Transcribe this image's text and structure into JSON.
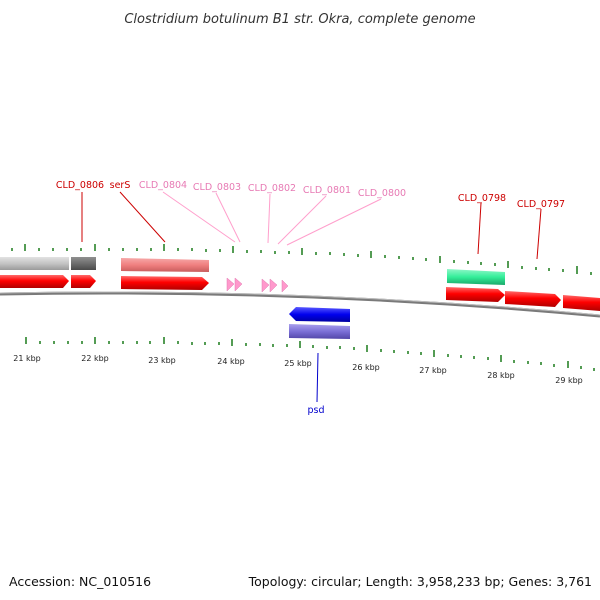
{
  "title": "Clostridium botulinum B1 str. Okra, complete genome",
  "accession": "Accession: NC_010516",
  "summary": "Topology: circular; Length: 3,958,233 bp; Genes: 3,761",
  "colors": {
    "backbone": "#7a7a7a",
    "tick": "#1a7a1a",
    "cds_forward": "#ff0000",
    "gene_gray": "#c4c4c4",
    "gene_darkgray": "#6e6e6e",
    "gene_salmon": "#f08080",
    "gene_pink": "#ff99cc",
    "gene_teal": "#33ee99",
    "gene_blue": "#0000ee",
    "gene_purple": "#7b6fd6",
    "label_red": "#cc0000",
    "label_pink": "#e77ab4",
    "label_blue": "#0000cc"
  },
  "scale_labels": [
    "21 kbp",
    "22 kbp",
    "23 kbp",
    "24 kbp",
    "25 kbp",
    "26 kbp",
    "27 kbp",
    "28 kbp",
    "29 kbp"
  ],
  "gene_labels": [
    {
      "id": "CLD_0806",
      "text": "CLD_0806",
      "color": "label_red"
    },
    {
      "id": "serS",
      "text": "serS",
      "color": "label_red"
    },
    {
      "id": "CLD_0804",
      "text": "CLD_0804",
      "color": "label_pink"
    },
    {
      "id": "CLD_0803",
      "text": "CLD_0803",
      "color": "label_pink"
    },
    {
      "id": "CLD_0802",
      "text": "CLD_0802",
      "color": "label_pink"
    },
    {
      "id": "CLD_0801",
      "text": "CLD_0801",
      "color": "label_pink"
    },
    {
      "id": "CLD_0800",
      "text": "CLD_0800",
      "color": "label_pink"
    },
    {
      "id": "CLD_0798",
      "text": "CLD_0798",
      "color": "label_red"
    },
    {
      "id": "CLD_0797",
      "text": "CLD_0797",
      "color": "label_red"
    },
    {
      "id": "psd",
      "text": "psd",
      "color": "label_blue"
    }
  ]
}
